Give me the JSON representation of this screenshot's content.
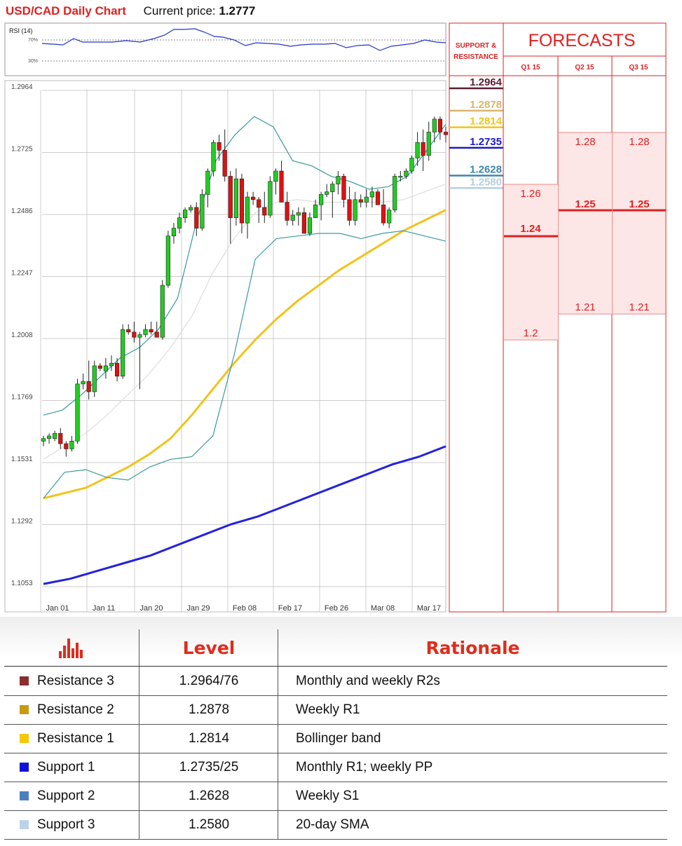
{
  "header": {
    "title": "USD/CAD Daily Chart",
    "price_label": "Current price:",
    "price_value": "1.2777"
  },
  "rsi": {
    "label": "RSI (14)",
    "levels": [
      "70%",
      "30%"
    ]
  },
  "chart_data": {
    "type": "candlestick",
    "title": "USD/CAD Daily Chart",
    "y_ticks": [
      "1.2964",
      "1.2725",
      "1.2486",
      "1.2247",
      "1.2008",
      "1.1769",
      "1.1531",
      "1.1292",
      "1.1053"
    ],
    "ylim": [
      1.1053,
      1.2964
    ],
    "x_ticks": [
      "Jan 01",
      "Jan 11",
      "Jan 20",
      "Jan 29",
      "Feb 08",
      "Feb 17",
      "Feb 26",
      "Mar 08",
      "Mar 17"
    ],
    "candles": [
      [
        1.16,
        1.162,
        1.158,
        1.161
      ],
      [
        1.161,
        1.163,
        1.159,
        1.162
      ],
      [
        1.161,
        1.164,
        1.16,
        1.163
      ],
      [
        1.163,
        1.165,
        1.157,
        1.159
      ],
      [
        1.159,
        1.16,
        1.154,
        1.157
      ],
      [
        1.157,
        1.162,
        1.156,
        1.16
      ],
      [
        1.16,
        1.184,
        1.159,
        1.182
      ],
      [
        1.182,
        1.186,
        1.18,
        1.183
      ],
      [
        1.183,
        1.191,
        1.176,
        1.179
      ],
      [
        1.179,
        1.191,
        1.177,
        1.189
      ],
      [
        1.189,
        1.19,
        1.187,
        1.188
      ],
      [
        1.187,
        1.192,
        1.184,
        1.189
      ],
      [
        1.189,
        1.193,
        1.187,
        1.19
      ],
      [
        1.19,
        1.192,
        1.183,
        1.185
      ],
      [
        1.185,
        1.205,
        1.184,
        1.203
      ],
      [
        1.203,
        1.205,
        1.201,
        1.202
      ],
      [
        1.202,
        1.206,
        1.198,
        1.2
      ],
      [
        1.2,
        1.202,
        1.18,
        1.201
      ],
      [
        1.201,
        1.205,
        1.2,
        1.203
      ],
      [
        1.203,
        1.206,
        1.201,
        1.202
      ],
      [
        1.202,
        1.206,
        1.2,
        1.2
      ],
      [
        1.2,
        1.222,
        1.199,
        1.22
      ],
      [
        1.22,
        1.241,
        1.219,
        1.239
      ],
      [
        1.239,
        1.244,
        1.236,
        1.242
      ],
      [
        1.242,
        1.248,
        1.24,
        1.246
      ],
      [
        1.246,
        1.25,
        1.244,
        1.249
      ],
      [
        1.249,
        1.251,
        1.248,
        1.25
      ],
      [
        1.25,
        1.252,
        1.239,
        1.242
      ],
      [
        1.242,
        1.257,
        1.241,
        1.255
      ],
      [
        1.255,
        1.265,
        1.25,
        1.264
      ],
      [
        1.264,
        1.276,
        1.262,
        1.275
      ],
      [
        1.275,
        1.278,
        1.268,
        1.272
      ],
      [
        1.272,
        1.28,
        1.26,
        1.262
      ],
      [
        1.262,
        1.264,
        1.236,
        1.246
      ],
      [
        1.246,
        1.265,
        1.243,
        1.261
      ],
      [
        1.261,
        1.263,
        1.24,
        1.244
      ],
      [
        1.244,
        1.256,
        1.238,
        1.254
      ],
      [
        1.254,
        1.256,
        1.251,
        1.253
      ],
      [
        1.253,
        1.254,
        1.244,
        1.25
      ],
      [
        1.25,
        1.256,
        1.244,
        1.247
      ],
      [
        1.247,
        1.262,
        1.246,
        1.26
      ],
      [
        1.26,
        1.265,
        1.255,
        1.264
      ],
      [
        1.264,
        1.268,
        1.252,
        1.252
      ],
      [
        1.252,
        1.256,
        1.243,
        1.245
      ],
      [
        1.245,
        1.249,
        1.243,
        1.247
      ],
      [
        1.247,
        1.25,
        1.243,
        1.248
      ],
      [
        1.248,
        1.25,
        1.24,
        1.24
      ],
      [
        1.24,
        1.248,
        1.239,
        1.246
      ],
      [
        1.246,
        1.253,
        1.246,
        1.251
      ],
      [
        1.251,
        1.256,
        1.245,
        1.255
      ],
      [
        1.255,
        1.259,
        1.254,
        1.256
      ],
      [
        1.256,
        1.26,
        1.246,
        1.259
      ],
      [
        1.259,
        1.264,
        1.255,
        1.262
      ],
      [
        1.262,
        1.263,
        1.25,
        1.253
      ],
      [
        1.253,
        1.258,
        1.243,
        1.245
      ],
      [
        1.245,
        1.256,
        1.243,
        1.253
      ],
      [
        1.253,
        1.255,
        1.25,
        1.252
      ],
      [
        1.252,
        1.257,
        1.25,
        1.254
      ],
      [
        1.254,
        1.258,
        1.25,
        1.256
      ],
      [
        1.256,
        1.257,
        1.251,
        1.251
      ],
      [
        1.251,
        1.257,
        1.243,
        1.244
      ],
      [
        1.244,
        1.25,
        1.242,
        1.249
      ],
      [
        1.249,
        1.263,
        1.248,
        1.262
      ],
      [
        1.262,
        1.264,
        1.26,
        1.262
      ],
      [
        1.262,
        1.265,
        1.261,
        1.264
      ],
      [
        1.264,
        1.27,
        1.263,
        1.269
      ],
      [
        1.269,
        1.279,
        1.266,
        1.275
      ],
      [
        1.275,
        1.28,
        1.264,
        1.27
      ],
      [
        1.27,
        1.283,
        1.268,
        1.279
      ],
      [
        1.279,
        1.285,
        1.275,
        1.284
      ],
      [
        1.284,
        1.285,
        1.276,
        1.279
      ],
      [
        1.279,
        1.281,
        1.275,
        1.278
      ]
    ],
    "series": [
      {
        "color": "#f2c31a",
        "values": [
          1.138,
          1.14,
          1.142,
          1.146,
          1.15,
          1.155,
          1.161,
          1.17,
          1.18,
          1.19,
          1.199,
          1.207,
          1.214,
          1.22,
          1.226,
          1.231,
          1.236,
          1.241,
          1.245,
          1.249
        ]
      },
      {
        "color": "#2222dd",
        "values": [
          1.105,
          1.107,
          1.11,
          1.113,
          1.116,
          1.12,
          1.124,
          1.128,
          1.131,
          1.135,
          1.139,
          1.143,
          1.147,
          1.151,
          1.154,
          1.158
        ]
      },
      {
        "color": "#3a9a9a",
        "values": [
          1.17,
          1.172,
          1.178,
          1.185,
          1.192,
          1.196,
          1.203,
          1.215,
          1.245,
          1.268,
          1.278,
          1.285,
          1.281,
          1.268,
          1.266,
          1.262,
          1.26,
          1.257,
          1.258,
          1.262,
          1.272,
          1.282
        ]
      },
      {
        "color": "#3a9a9a",
        "values": [
          1.138,
          1.148,
          1.149,
          1.146,
          1.145,
          1.15,
          1.153,
          1.154,
          1.162,
          1.193,
          1.23,
          1.238,
          1.239,
          1.24,
          1.24,
          1.238,
          1.24,
          1.241,
          1.239,
          1.237
        ]
      },
      {
        "color": "#dddddd",
        "values": [
          1.153,
          1.158,
          1.163,
          1.17,
          1.178,
          1.186,
          1.196,
          1.208,
          1.225,
          1.238,
          1.248,
          1.252,
          1.253,
          1.252,
          1.252,
          1.252,
          1.252,
          1.253,
          1.256,
          1.259
        ]
      }
    ]
  },
  "sr_panel": {
    "header": "SUPPORT & RESISTANCE",
    "levels": [
      {
        "value": "1.2964",
        "color": "#5a1e35"
      },
      {
        "value": "1.2878",
        "color": "#d8b56a"
      },
      {
        "value": "1.2814",
        "color": "#f0c419"
      },
      {
        "value": "1.2735",
        "color": "#1a1acc"
      },
      {
        "value": "1.2628",
        "color": "#3b86b0"
      },
      {
        "value": "1.2580",
        "color": "#b6cfde"
      }
    ]
  },
  "forecasts": {
    "title": "FORECASTS",
    "columns": [
      "Q1 15",
      "Q2 15",
      "Q3 15"
    ],
    "q1": [
      "1.26",
      "1.24",
      "1.2"
    ],
    "q2": [
      "1.28",
      "1.25",
      "1.21"
    ],
    "q3": [
      "1.28",
      "1.25",
      "1.21"
    ]
  },
  "table": {
    "headers": {
      "level": "Level",
      "rationale": "Rationale"
    },
    "icon": "bar-chart-icon",
    "rows": [
      {
        "name": "Resistance 3",
        "level": "1.2964/76",
        "rationale": "Monthly and weekly R2s",
        "color": "#8b2e2e"
      },
      {
        "name": "Resistance 2",
        "level": "1.2878",
        "rationale": "Weekly R1",
        "color": "#c89a10"
      },
      {
        "name": "Resistance 1",
        "level": "1.2814",
        "rationale": "Bollinger band",
        "color": "#f5c800"
      },
      {
        "name": "Support 1",
        "level": "1.2735/25",
        "rationale": "Monthly R1; weekly PP",
        "color": "#1010dd"
      },
      {
        "name": "Support 2",
        "level": "1.2628",
        "rationale": "Weekly S1",
        "color": "#4a7fbf"
      },
      {
        "name": "Support 3",
        "level": "1.2580",
        "rationale": "20-day SMA",
        "color": "#bcd2e8"
      }
    ]
  }
}
